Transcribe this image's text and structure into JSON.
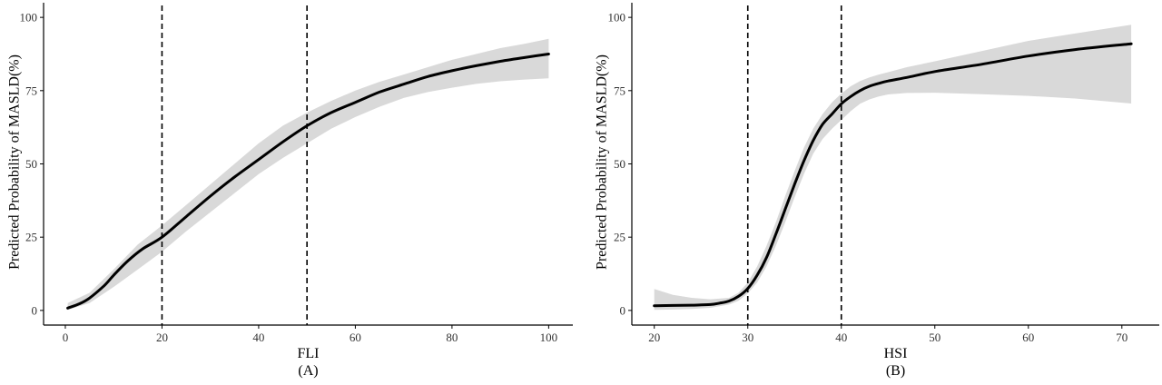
{
  "colors": {
    "ribbon": "#d9d9d9",
    "line": "#000000",
    "axis": "#000000",
    "refline": "#000000"
  },
  "chart_data": [
    {
      "type": "line",
      "panel_label": "(A)",
      "xlabel": "FLI",
      "ylabel": "Predicted Probability of MASLD(%)",
      "xlim": [
        -4.5,
        105
      ],
      "ylim": [
        -5,
        105
      ],
      "xticks": [
        0,
        20,
        40,
        60,
        80,
        100
      ],
      "yticks": [
        0,
        25,
        50,
        75,
        100
      ],
      "reference_lines_x": [
        20,
        50
      ],
      "grid": false,
      "legend": "none",
      "series": [
        {
          "kind": "fit",
          "x": [
            0.5,
            3,
            5,
            8,
            10,
            13,
            16,
            20,
            25,
            30,
            35,
            40,
            45,
            50,
            55,
            60,
            65,
            70,
            75,
            80,
            85,
            90,
            95,
            100
          ],
          "y": [
            0.8,
            2.3,
            4.2,
            8.4,
            12,
            17,
            21,
            25,
            32,
            39,
            45.5,
            51.5,
            57.5,
            63,
            67.5,
            71,
            74.5,
            77.2,
            79.8,
            81.8,
            83.5,
            85,
            86.3,
            87.5
          ]
        },
        {
          "kind": "ci_upper",
          "x": [
            0.5,
            5,
            10,
            15,
            20,
            25,
            30,
            35,
            40,
            45,
            50,
            55,
            60,
            65,
            70,
            75,
            80,
            85,
            90,
            95,
            100
          ],
          "y": [
            2.5,
            6,
            14,
            22.5,
            29,
            36,
            43,
            50,
            57,
            63,
            67.5,
            71.5,
            75,
            78,
            80.5,
            83,
            85.5,
            87.5,
            89.5,
            91,
            92.7
          ]
        },
        {
          "kind": "ci_lower",
          "x": [
            0.5,
            5,
            10,
            15,
            20,
            25,
            30,
            35,
            40,
            45,
            50,
            55,
            60,
            65,
            70,
            75,
            80,
            85,
            90,
            95,
            100
          ],
          "y": [
            0.2,
            2.5,
            8,
            14,
            20,
            27,
            33.5,
            40,
            46.5,
            52,
            57,
            62,
            66,
            69.5,
            72.5,
            74.5,
            76,
            77.3,
            78.2,
            78.8,
            79.2
          ]
        }
      ]
    },
    {
      "type": "line",
      "panel_label": "(B)",
      "xlabel": "HSI",
      "ylabel": "Predicted Probability of MASLD(%)",
      "xlim": [
        17.6,
        74
      ],
      "ylim": [
        -5,
        105
      ],
      "xticks": [
        20,
        30,
        40,
        50,
        60,
        70
      ],
      "yticks": [
        0,
        25,
        50,
        75,
        100
      ],
      "reference_lines_x": [
        30,
        40
      ],
      "grid": false,
      "legend": "none",
      "series": [
        {
          "kind": "fit",
          "x": [
            20,
            22,
            24,
            26,
            27,
            28,
            29,
            30,
            31,
            32,
            33,
            34,
            35,
            36,
            37,
            38,
            39,
            40,
            41,
            42,
            43,
            44,
            45,
            47,
            50,
            55,
            60,
            65,
            71
          ],
          "y": [
            1.6,
            1.7,
            1.8,
            2,
            2.5,
            3.2,
            4.8,
            7.5,
            12,
            18,
            26,
            34.5,
            43,
            51,
            58,
            63.5,
            67,
            70.5,
            73,
            75,
            76.5,
            77.5,
            78.3,
            79.5,
            81.5,
            84,
            86.8,
            89,
            91
          ]
        },
        {
          "kind": "ci_upper",
          "x": [
            20,
            22,
            24,
            26,
            28,
            29,
            30,
            31,
            32,
            33,
            34,
            35,
            36,
            37,
            38,
            39,
            40,
            41,
            42,
            43,
            44,
            45,
            47,
            50,
            55,
            60,
            65,
            71
          ],
          "y": [
            7.3,
            5.3,
            4.3,
            3.8,
            4.3,
            6,
            9.5,
            15,
            22,
            30,
            39,
            47.5,
            55.5,
            62,
            67,
            71,
            74,
            76.5,
            78.3,
            79.5,
            80.5,
            81.3,
            83,
            85,
            88.5,
            92,
            94.5,
            97.5
          ]
        },
        {
          "kind": "ci_lower",
          "x": [
            20,
            22,
            24,
            26,
            28,
            29,
            30,
            31,
            32,
            33,
            34,
            35,
            36,
            37,
            38,
            39,
            40,
            41,
            42,
            43,
            44,
            45,
            47,
            50,
            55,
            60,
            65,
            71
          ],
          "y": [
            0.2,
            0.3,
            0.5,
            0.9,
            2,
            3.3,
            5.8,
            9.5,
            15,
            22,
            30,
            38.5,
            46.5,
            53.5,
            58.5,
            62,
            65,
            68,
            70.5,
            72,
            73,
            73.7,
            74.2,
            74.3,
            73.8,
            73.2,
            72.3,
            70.6
          ]
        }
      ]
    }
  ]
}
